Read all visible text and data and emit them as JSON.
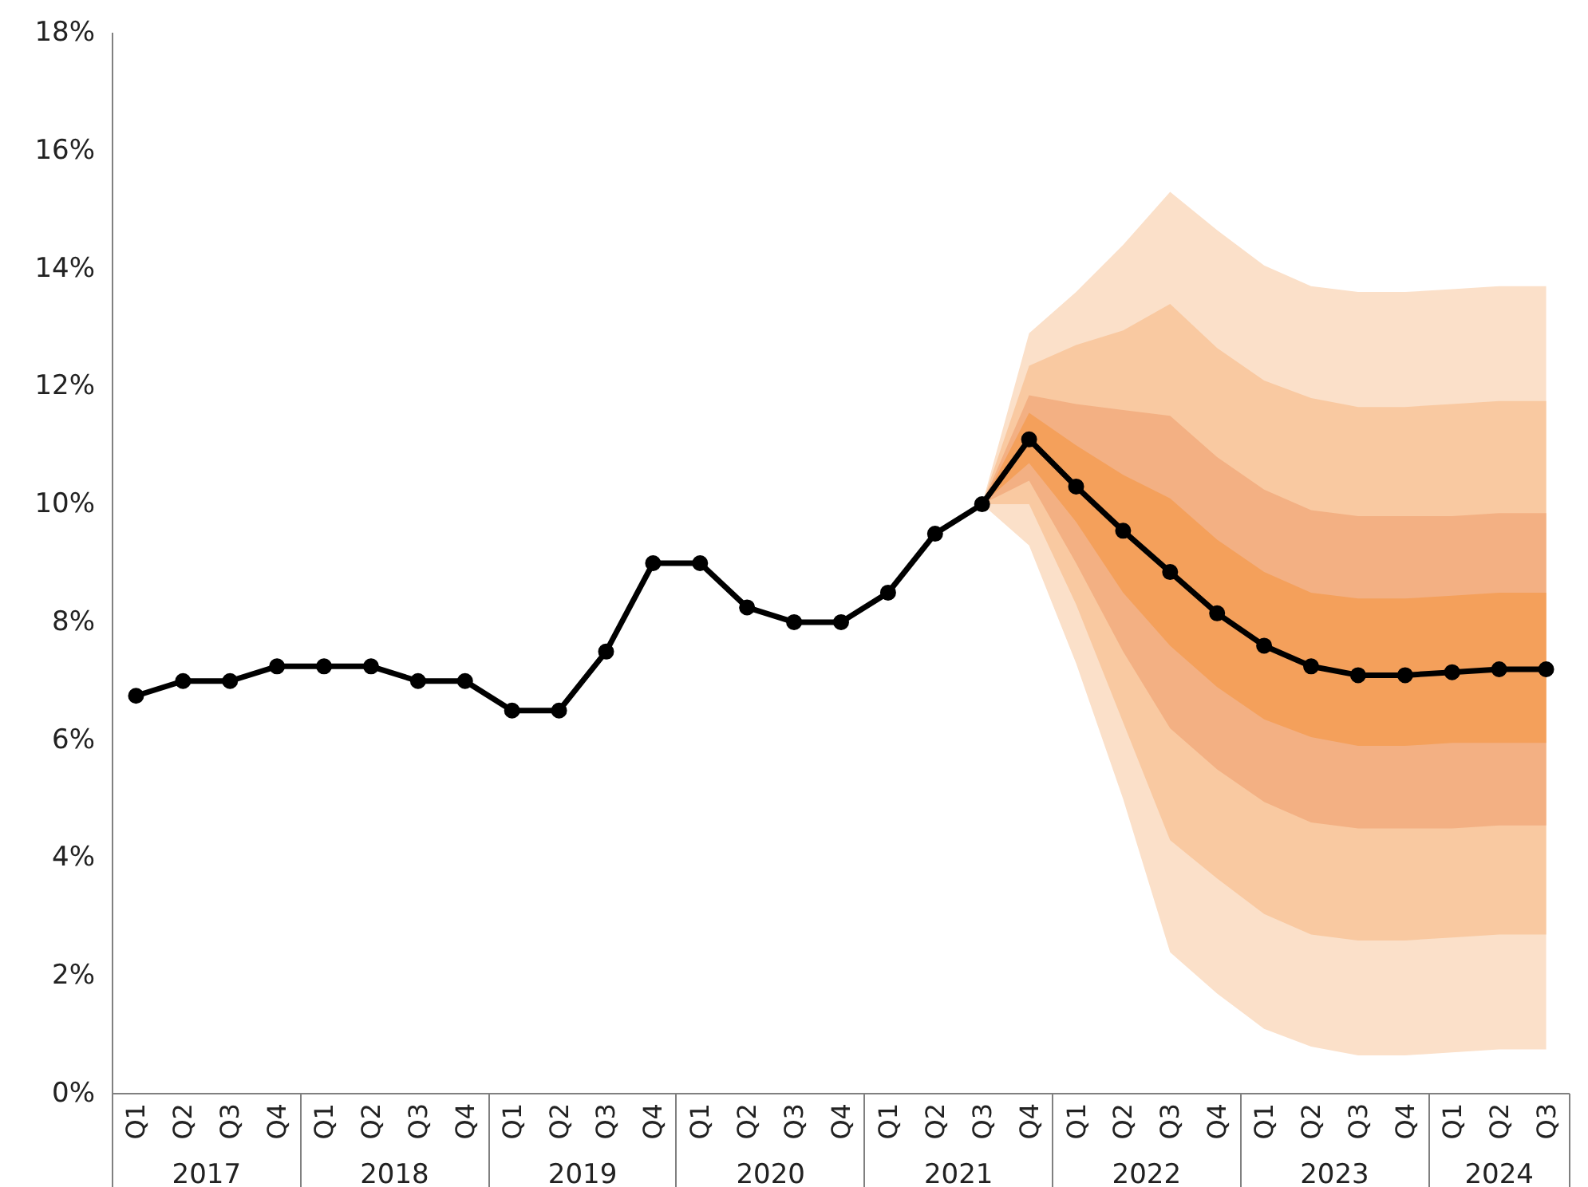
{
  "chart_data": {
    "type": "line",
    "categories": [
      "Q1",
      "Q2",
      "Q3",
      "Q4",
      "Q1",
      "Q2",
      "Q3",
      "Q4",
      "Q1",
      "Q2",
      "Q3",
      "Q4",
      "Q1",
      "Q2",
      "Q3",
      "Q4",
      "Q1",
      "Q2",
      "Q3",
      "Q4",
      "Q1",
      "Q2",
      "Q3",
      "Q4",
      "Q1",
      "Q2",
      "Q3",
      "Q4",
      "Q1",
      "Q2",
      "Q3"
    ],
    "annotations": [
      "2017",
      "2018",
      "2019",
      "2020",
      "2021",
      "2022",
      "2023",
      "2024"
    ],
    "ylim": [
      0,
      18
    ],
    "yticks": [
      {
        "value": 0,
        "label": "0%"
      },
      {
        "value": 2,
        "label": "2%"
      },
      {
        "value": 4,
        "label": "4%"
      },
      {
        "value": 6,
        "label": "6%"
      },
      {
        "value": 8,
        "label": "8%"
      },
      {
        "value": 10,
        "label": "10%"
      },
      {
        "value": 12,
        "label": "12%"
      },
      {
        "value": 14,
        "label": "14%"
      },
      {
        "value": 16,
        "label": "16%"
      },
      {
        "value": 18,
        "label": "18%"
      }
    ],
    "grid": false,
    "marker": "circle",
    "line_style": "solid",
    "series": [
      {
        "type": "area",
        "color": "#fbe0c9",
        "values": [
          null,
          null,
          null,
          null,
          null,
          null,
          null,
          null,
          null,
          null,
          null,
          null,
          null,
          null,
          null,
          null,
          null,
          null,
          null,
          null,
          null,
          null,
          null,
          null,
          null,
          null,
          null,
          null,
          null,
          null,
          null
        ],
        "lower": [
          null,
          null,
          null,
          null,
          null,
          null,
          null,
          null,
          null,
          null,
          null,
          null,
          null,
          null,
          null,
          null,
          null,
          null,
          10,
          9.3,
          7.3,
          5.0,
          2.4,
          1.7,
          1.1,
          0.8,
          0.65,
          0.65,
          0.7,
          0.75,
          0.75
        ],
        "upper": [
          null,
          null,
          null,
          null,
          null,
          null,
          null,
          null,
          null,
          null,
          null,
          null,
          null,
          null,
          null,
          null,
          null,
          null,
          10,
          12.9,
          13.6,
          14.4,
          15.3,
          14.65,
          14.05,
          13.7,
          13.6,
          13.6,
          13.65,
          13.7,
          13.7
        ]
      },
      {
        "type": "area",
        "color": "#f9c9a1",
        "values": [
          null,
          null,
          null,
          null,
          null,
          null,
          null,
          null,
          null,
          null,
          null,
          null,
          null,
          null,
          null,
          null,
          null,
          null,
          null,
          null,
          null,
          null,
          null,
          null,
          null,
          null,
          null,
          null,
          null,
          null,
          null
        ],
        "lower": [
          null,
          null,
          null,
          null,
          null,
          null,
          null,
          null,
          null,
          null,
          null,
          null,
          null,
          null,
          null,
          null,
          null,
          null,
          10,
          10.0,
          8.3,
          6.3,
          4.3,
          3.65,
          3.05,
          2.7,
          2.6,
          2.6,
          2.65,
          2.7,
          2.7
        ],
        "upper": [
          null,
          null,
          null,
          null,
          null,
          null,
          null,
          null,
          null,
          null,
          null,
          null,
          null,
          null,
          null,
          null,
          null,
          null,
          10,
          12.35,
          12.7,
          12.95,
          13.4,
          12.65,
          12.1,
          11.8,
          11.65,
          11.65,
          11.7,
          11.75,
          11.75
        ]
      },
      {
        "type": "area",
        "color": "#f3b083",
        "values": [
          null,
          null,
          null,
          null,
          null,
          null,
          null,
          null,
          null,
          null,
          null,
          null,
          null,
          null,
          null,
          null,
          null,
          null,
          null,
          null,
          null,
          null,
          null,
          null,
          null,
          null,
          null,
          null,
          null,
          null,
          null
        ],
        "lower": [
          null,
          null,
          null,
          null,
          null,
          null,
          null,
          null,
          null,
          null,
          null,
          null,
          null,
          null,
          null,
          null,
          null,
          null,
          10,
          10.4,
          9.0,
          7.5,
          6.2,
          5.5,
          4.95,
          4.6,
          4.5,
          4.5,
          4.5,
          4.55,
          4.55
        ],
        "upper": [
          null,
          null,
          null,
          null,
          null,
          null,
          null,
          null,
          null,
          null,
          null,
          null,
          null,
          null,
          null,
          null,
          null,
          null,
          10,
          11.85,
          11.7,
          11.6,
          11.5,
          10.8,
          10.25,
          9.9,
          9.8,
          9.8,
          9.8,
          9.85,
          9.85
        ]
      },
      {
        "type": "area",
        "color": "#f4a05b",
        "values": [
          null,
          null,
          null,
          null,
          null,
          null,
          null,
          null,
          null,
          null,
          null,
          null,
          null,
          null,
          null,
          null,
          null,
          null,
          null,
          null,
          null,
          null,
          null,
          null,
          null,
          null,
          null,
          null,
          null,
          null,
          null
        ],
        "lower": [
          null,
          null,
          null,
          null,
          null,
          null,
          null,
          null,
          null,
          null,
          null,
          null,
          null,
          null,
          null,
          null,
          null,
          null,
          10,
          10.7,
          9.7,
          8.5,
          7.6,
          6.9,
          6.35,
          6.05,
          5.9,
          5.9,
          5.95,
          5.95,
          5.95
        ],
        "upper": [
          null,
          null,
          null,
          null,
          null,
          null,
          null,
          null,
          null,
          null,
          null,
          null,
          null,
          null,
          null,
          null,
          null,
          null,
          10,
          11.55,
          11.0,
          10.5,
          10.1,
          9.4,
          8.85,
          8.5,
          8.4,
          8.4,
          8.45,
          8.5,
          8.5
        ]
      },
      {
        "type": "line",
        "color": "#000000",
        "values": [
          6.75,
          7,
          7,
          7.25,
          7.25,
          7.25,
          7,
          7,
          6.5,
          6.5,
          7.5,
          9,
          9,
          8.25,
          8,
          8,
          8.5,
          9.5,
          10,
          11.1,
          10.3,
          9.55,
          8.85,
          8.15,
          7.6,
          7.25,
          7.1,
          7.1,
          7.15,
          7.2,
          7.2
        ]
      }
    ]
  }
}
